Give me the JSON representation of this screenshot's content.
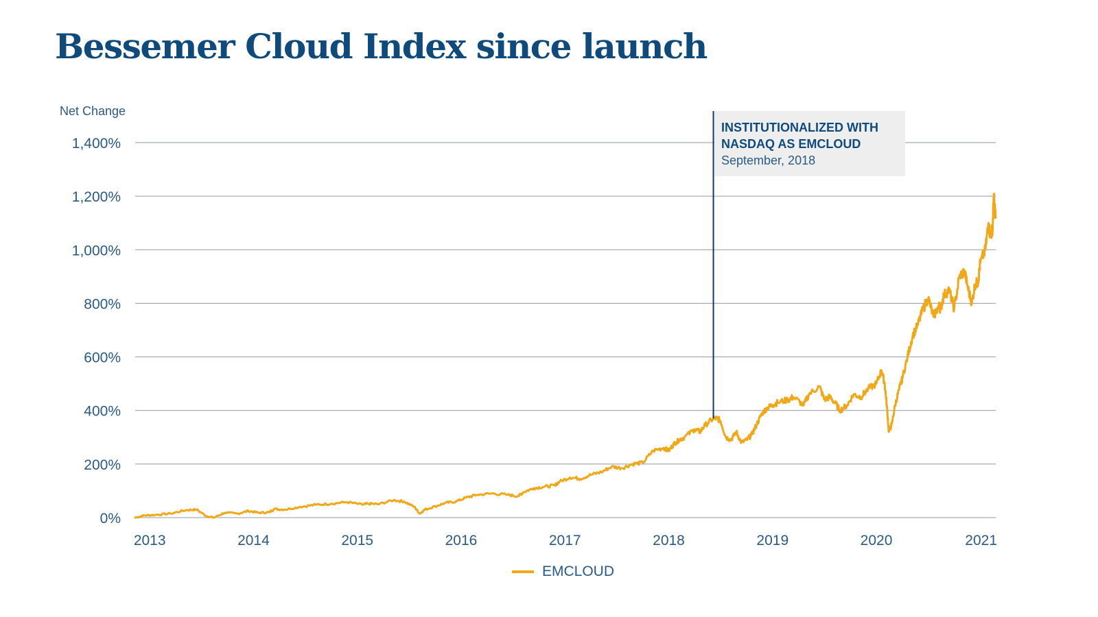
{
  "title": "Bessemer Cloud Index since launch",
  "colors": {
    "title": "#0f4a7c",
    "text": "#2a5a85",
    "line": "#f0a818",
    "grid": "#8f9aa6",
    "marker": "#0f3a66",
    "annotation_bg": "#eeeeee"
  },
  "annotation": {
    "heading": "INSTITUTIONALIZED WITH NASDAQ AS EMCLOUD",
    "subheading": "September, 2018",
    "x": 2018.43
  },
  "chart_data": {
    "type": "line",
    "title": "Bessemer Cloud Index since launch",
    "ylabel": "Net Change",
    "xlabel": "",
    "y_ticks": [
      0,
      200,
      400,
      600,
      800,
      1000,
      1200,
      1400
    ],
    "y_tick_labels": [
      "0%",
      "200%",
      "400%",
      "600%",
      "800%",
      "1,000%",
      "1,200%",
      "1,400%"
    ],
    "x_ticks": [
      2013,
      2014,
      2015,
      2016,
      2017,
      2018,
      2019,
      2020,
      2021
    ],
    "x_tick_labels": [
      "2013",
      "2014",
      "2015",
      "2016",
      "2017",
      "2018",
      "2019",
      "2020",
      "2021"
    ],
    "xlim": [
      2012.86,
      2021.15
    ],
    "ylim": [
      0,
      1400
    ],
    "grid": true,
    "legend_position": "bottom-center",
    "series": [
      {
        "name": "EMCLOUD",
        "x": [
          2012.86,
          2012.95,
          2013.05,
          2013.2,
          2013.35,
          2013.45,
          2013.55,
          2013.62,
          2013.72,
          2013.85,
          2013.95,
          2014.05,
          2014.15,
          2014.2,
          2014.3,
          2014.45,
          2014.6,
          2014.75,
          2014.9,
          2015.05,
          2015.1,
          2015.2,
          2015.35,
          2015.45,
          2015.55,
          2015.6,
          2015.65,
          2015.75,
          2015.85,
          2015.95,
          2016.05,
          2016.15,
          2016.3,
          2016.45,
          2016.55,
          2016.6,
          2016.7,
          2016.8,
          2016.9,
          2016.95,
          2017.05,
          2017.15,
          2017.25,
          2017.35,
          2017.45,
          2017.55,
          2017.65,
          2017.75,
          2017.85,
          2017.95,
          2018.0,
          2018.05,
          2018.1,
          2018.15,
          2018.25,
          2018.3,
          2018.35,
          2018.43,
          2018.47,
          2018.5,
          2018.55,
          2018.6,
          2018.65,
          2018.7,
          2018.75,
          2018.8,
          2018.85,
          2018.9,
          2018.95,
          2019.0,
          2019.05,
          2019.15,
          2019.2,
          2019.3,
          2019.35,
          2019.45,
          2019.5,
          2019.55,
          2019.6,
          2019.65,
          2019.72,
          2019.78,
          2019.85,
          2019.92,
          2020.0,
          2020.05,
          2020.08,
          2020.1,
          2020.12,
          2020.15,
          2020.18,
          2020.22,
          2020.25,
          2020.3,
          2020.35,
          2020.4,
          2020.45,
          2020.5,
          2020.55,
          2020.6,
          2020.62,
          2020.65,
          2020.7,
          2020.75,
          2020.8,
          2020.85,
          2020.88,
          2020.92,
          2020.95,
          2020.98,
          2021.0,
          2021.05,
          2021.08,
          2021.1,
          2021.12,
          2021.13,
          2021.15
        ],
        "values": [
          0,
          8,
          10,
          15,
          28,
          30,
          5,
          0,
          18,
          15,
          25,
          18,
          20,
          32,
          30,
          40,
          48,
          52,
          58,
          48,
          52,
          50,
          65,
          60,
          40,
          15,
          30,
          42,
          55,
          60,
          75,
          85,
          90,
          85,
          80,
          95,
          110,
          115,
          120,
          135,
          150,
          145,
          160,
          170,
          190,
          185,
          200,
          205,
          250,
          260,
          250,
          275,
          290,
          300,
          330,
          320,
          345,
          370,
          370,
          360,
          300,
          290,
          320,
          280,
          290,
          310,
          350,
          390,
          410,
          420,
          430,
          440,
          450,
          420,
          460,
          490,
          440,
          450,
          430,
          400,
          420,
          460,
          450,
          480,
          500,
          550,
          500,
          420,
          320,
          350,
          420,
          480,
          520,
          600,
          680,
          720,
          780,
          820,
          750,
          790,
          780,
          830,
          850,
          780,
          900,
          920,
          860,
          800,
          870,
          880,
          950,
          1000,
          1100,
          1050,
          1080,
          1200,
          1120
        ]
      }
    ]
  }
}
